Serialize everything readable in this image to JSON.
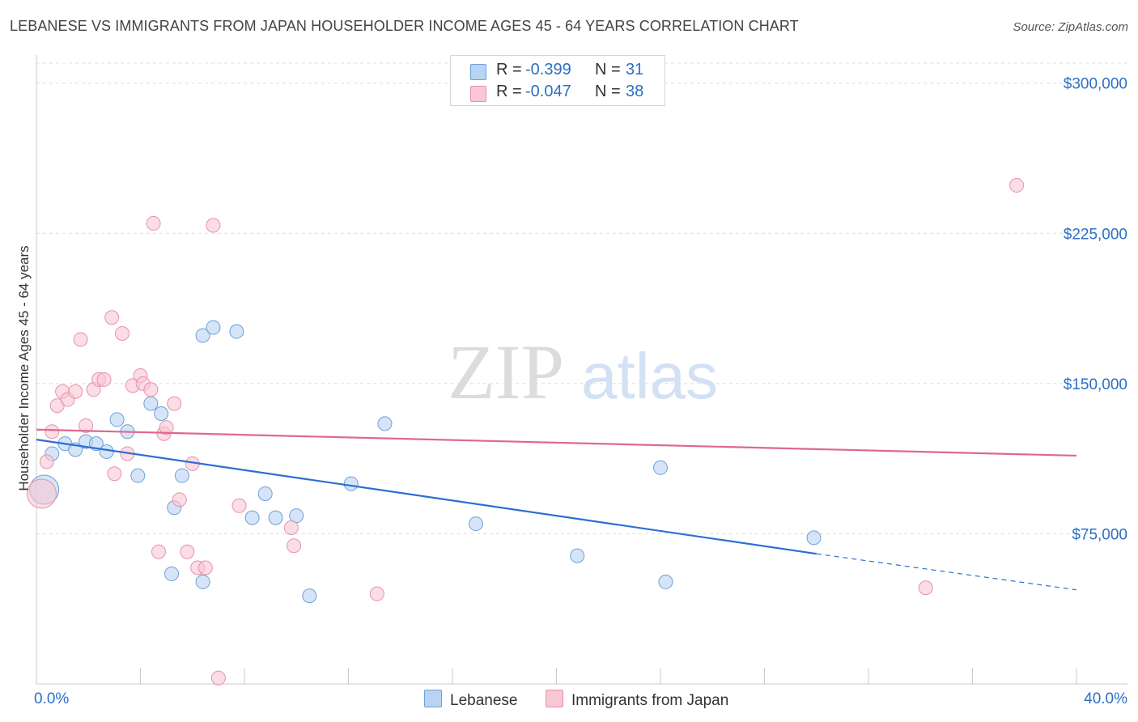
{
  "title": "LEBANESE VS IMMIGRANTS FROM JAPAN HOUSEHOLDER INCOME AGES 45 - 64 YEARS CORRELATION CHART",
  "source": "Source: ZipAtlas.com",
  "watermark": {
    "zip": "ZIP",
    "atlas": "atlas"
  },
  "colors": {
    "lebanese_fill": "#b9d3f2",
    "lebanese_stroke": "#6f9fd8",
    "lebanese_line": "#2c6fd1",
    "japan_fill": "#f8c6d4",
    "japan_stroke": "#e891ab",
    "japan_line": "#e0678f",
    "value_text": "#2c6fc6",
    "grid": "#dcdcdc"
  },
  "legend_top": [
    {
      "label": "R = ",
      "r": "-0.399",
      "n_label": "N = ",
      "n": "31"
    },
    {
      "label": "R = ",
      "r": "-0.047",
      "n_label": "N = ",
      "n": "38"
    }
  ],
  "chart_data": {
    "type": "scatter",
    "xlabel": "",
    "ylabel": "Householder Income Ages 45 - 64 years",
    "xlim": [
      0,
      40
    ],
    "ylim": [
      0,
      310000
    ],
    "x_tick_labels": [
      "0.0%",
      "40.0%"
    ],
    "y_ticks": [
      75000,
      150000,
      225000,
      300000
    ],
    "y_tick_labels": [
      "$75,000",
      "$150,000",
      "$225,000",
      "$300,000"
    ],
    "grid": true,
    "legend_position": "bottom-center",
    "series": [
      {
        "name": "Lebanese",
        "points": [
          {
            "x": 0.3,
            "y": 97000,
            "big": true
          },
          {
            "x": 0.6,
            "y": 115000
          },
          {
            "x": 1.1,
            "y": 120000
          },
          {
            "x": 1.5,
            "y": 117000
          },
          {
            "x": 1.9,
            "y": 121000
          },
          {
            "x": 2.3,
            "y": 120000
          },
          {
            "x": 2.7,
            "y": 116000
          },
          {
            "x": 3.1,
            "y": 132000
          },
          {
            "x": 3.5,
            "y": 126000
          },
          {
            "x": 3.9,
            "y": 104000
          },
          {
            "x": 4.4,
            "y": 140000
          },
          {
            "x": 4.8,
            "y": 135000
          },
          {
            "x": 5.2,
            "y": 55000
          },
          {
            "x": 5.3,
            "y": 88000
          },
          {
            "x": 5.6,
            "y": 104000
          },
          {
            "x": 6.4,
            "y": 174000
          },
          {
            "x": 6.8,
            "y": 178000
          },
          {
            "x": 7.7,
            "y": 176000
          },
          {
            "x": 8.3,
            "y": 83000
          },
          {
            "x": 8.8,
            "y": 95000
          },
          {
            "x": 9.2,
            "y": 83000
          },
          {
            "x": 10.0,
            "y": 84000
          },
          {
            "x": 10.5,
            "y": 44000
          },
          {
            "x": 12.1,
            "y": 100000
          },
          {
            "x": 13.4,
            "y": 130000
          },
          {
            "x": 16.9,
            "y": 80000
          },
          {
            "x": 20.8,
            "y": 64000
          },
          {
            "x": 24.0,
            "y": 108000
          },
          {
            "x": 24.2,
            "y": 51000
          },
          {
            "x": 29.9,
            "y": 73000
          },
          {
            "x": 6.4,
            "y": 51000
          }
        ],
        "trend": {
          "x1": 0,
          "y1": 122000,
          "x2": 30.0,
          "y2": 65000,
          "dash_to_x": 40,
          "dash_to_y": 47000
        }
      },
      {
        "name": "Immigrants from Japan",
        "points": [
          {
            "x": 0.2,
            "y": 95000,
            "big": true
          },
          {
            "x": 0.4,
            "y": 111000
          },
          {
            "x": 0.6,
            "y": 126000
          },
          {
            "x": 0.8,
            "y": 139000
          },
          {
            "x": 1.0,
            "y": 146000
          },
          {
            "x": 1.2,
            "y": 142000
          },
          {
            "x": 1.5,
            "y": 146000
          },
          {
            "x": 1.7,
            "y": 172000
          },
          {
            "x": 1.9,
            "y": 129000
          },
          {
            "x": 2.2,
            "y": 147000
          },
          {
            "x": 2.4,
            "y": 152000
          },
          {
            "x": 2.6,
            "y": 152000
          },
          {
            "x": 2.9,
            "y": 183000
          },
          {
            "x": 3.0,
            "y": 105000
          },
          {
            "x": 3.3,
            "y": 175000
          },
          {
            "x": 3.5,
            "y": 115000
          },
          {
            "x": 3.7,
            "y": 149000
          },
          {
            "x": 4.0,
            "y": 154000
          },
          {
            "x": 4.1,
            "y": 150000
          },
          {
            "x": 4.4,
            "y": 147000
          },
          {
            "x": 4.5,
            "y": 230000
          },
          {
            "x": 4.7,
            "y": 66000
          },
          {
            "x": 4.9,
            "y": 125000
          },
          {
            "x": 5.0,
            "y": 128000
          },
          {
            "x": 5.3,
            "y": 140000
          },
          {
            "x": 5.5,
            "y": 92000
          },
          {
            "x": 5.8,
            "y": 66000
          },
          {
            "x": 6.0,
            "y": 110000
          },
          {
            "x": 6.2,
            "y": 58000
          },
          {
            "x": 6.5,
            "y": 58000
          },
          {
            "x": 6.8,
            "y": 229000
          },
          {
            "x": 7.0,
            "y": 3000
          },
          {
            "x": 7.8,
            "y": 89000
          },
          {
            "x": 9.8,
            "y": 78000
          },
          {
            "x": 9.9,
            "y": 69000
          },
          {
            "x": 13.1,
            "y": 45000
          },
          {
            "x": 34.2,
            "y": 48000
          },
          {
            "x": 37.7,
            "y": 249000
          }
        ],
        "trend": {
          "x1": 0,
          "y1": 127000,
          "x2": 40,
          "y2": 114000
        }
      }
    ]
  }
}
